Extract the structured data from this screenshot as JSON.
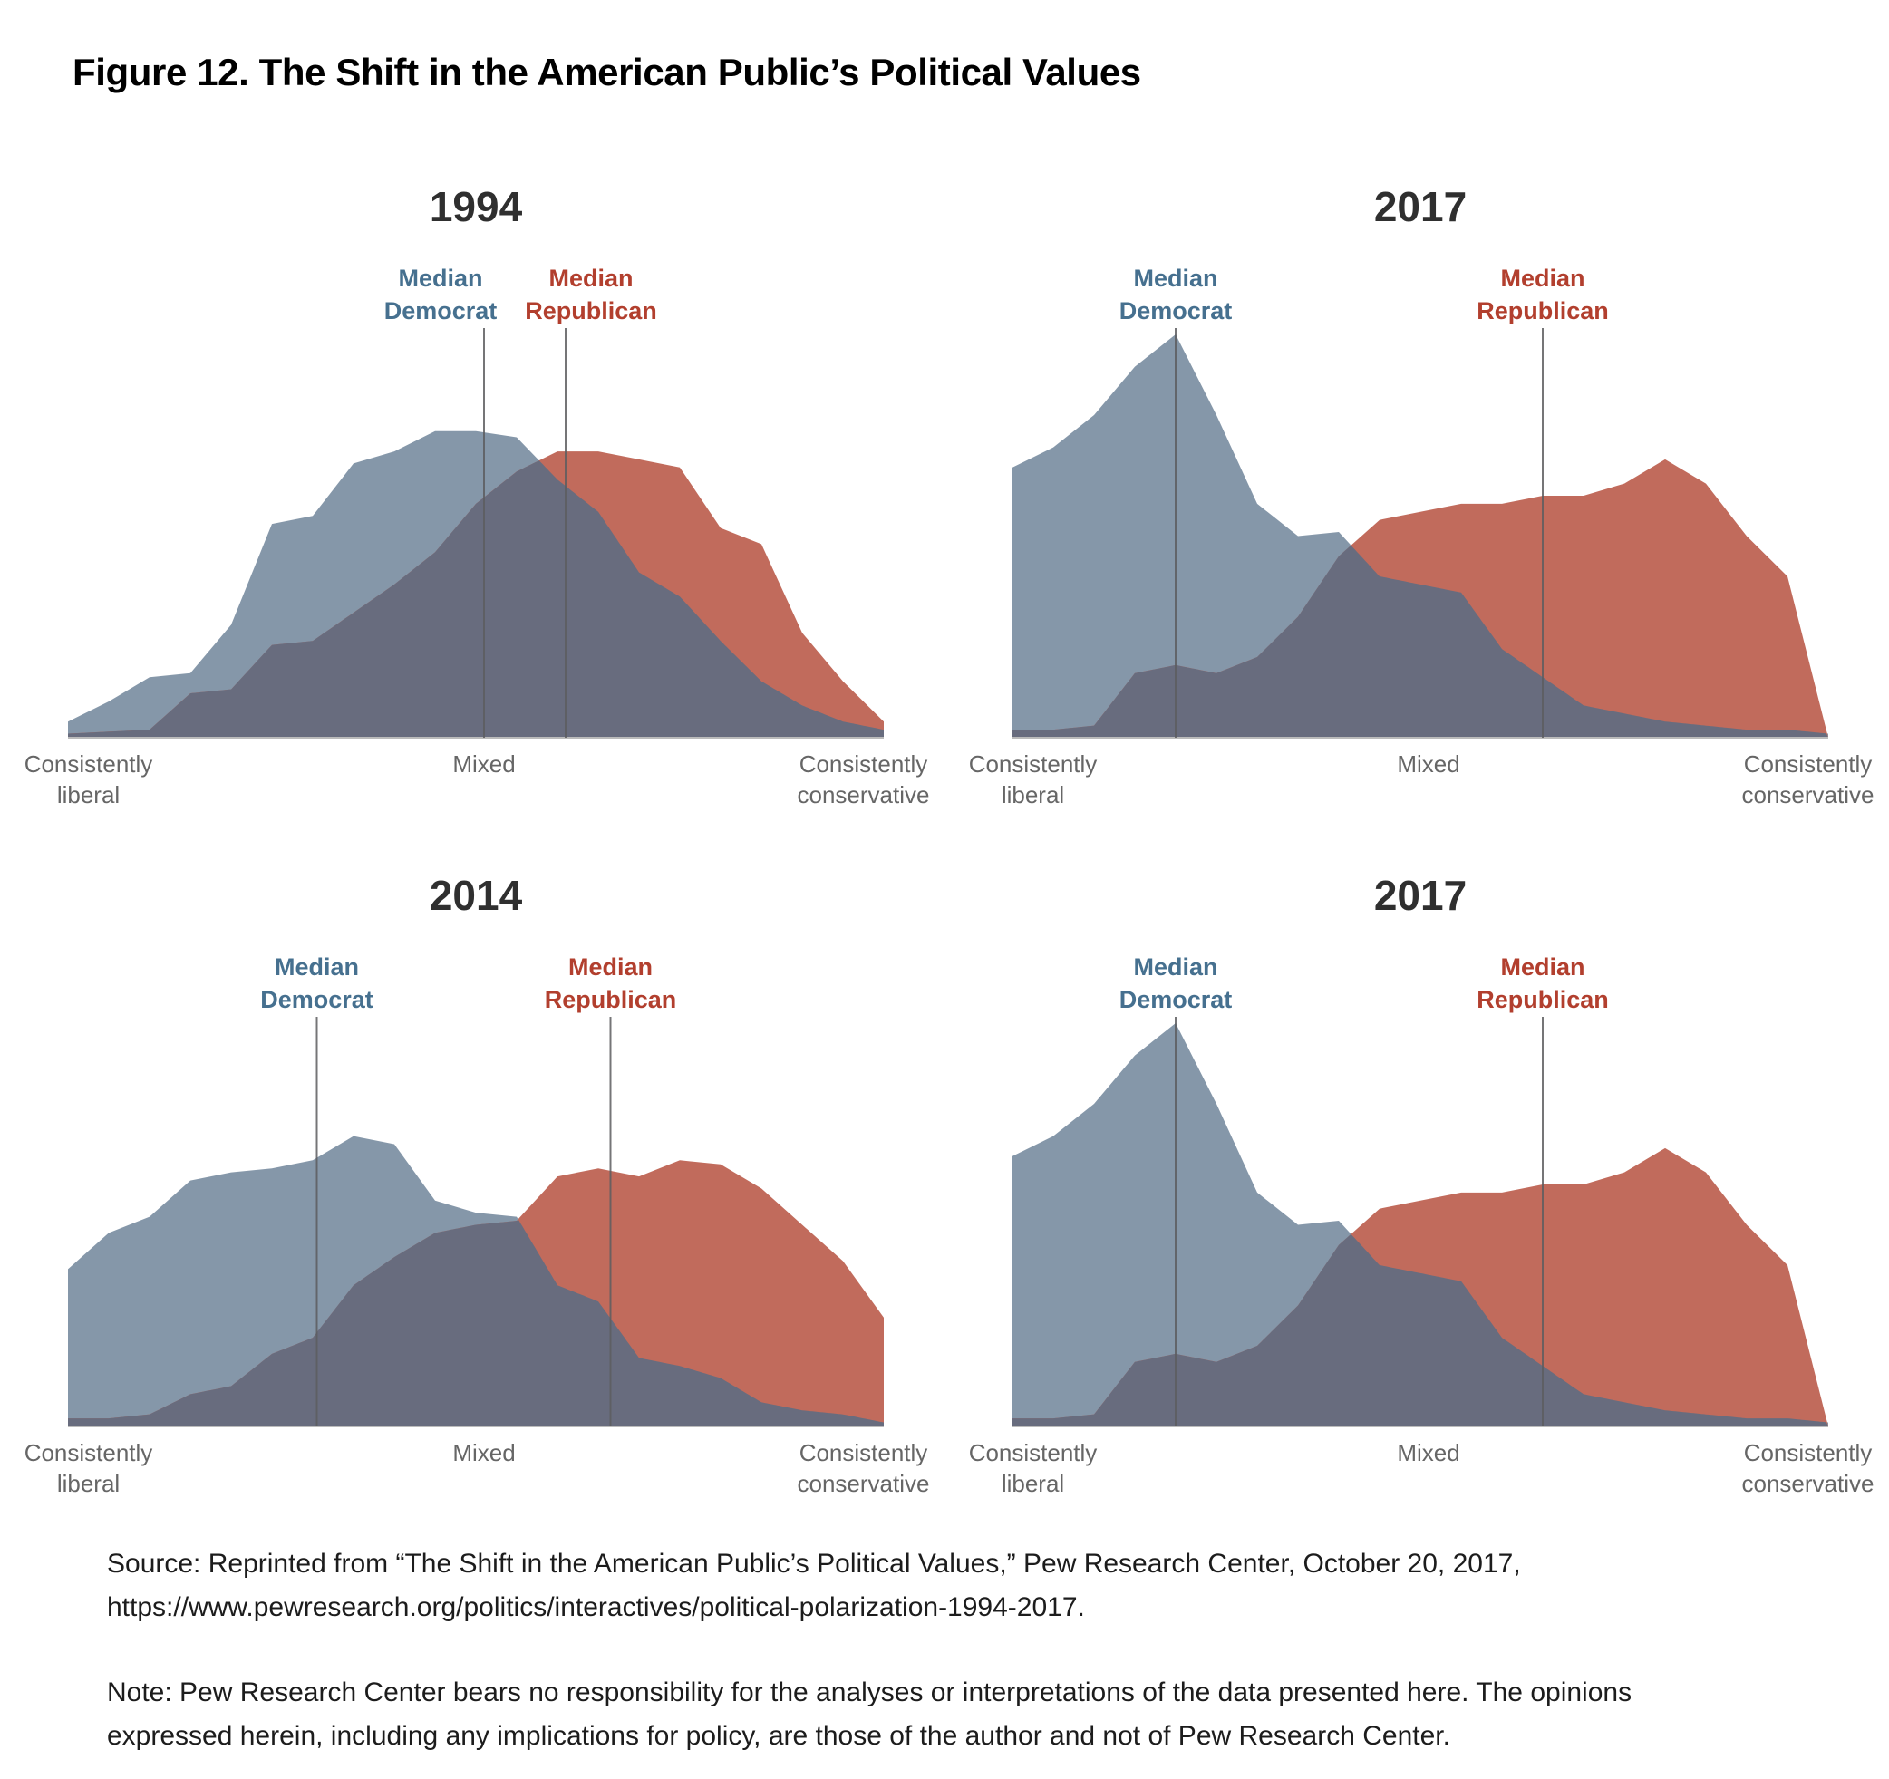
{
  "figure": {
    "title": "Figure 12. The Shift in the American Public’s Political Values",
    "source": "Source: Reprinted from “The Shift in the American Public’s Political Values,” Pew Research Center, October 20, 2017, https://www.pewresearch.org/politics/interactives/political-polarization-1994-2017.",
    "note": "Note: Pew Research Center bears no responsibility for the analyses or interpretations of the data presented here. The opinions expressed herein, including any implications for policy, are those of the author and not of Pew Research Center."
  },
  "colors": {
    "democrat_fill": "#8597A9",
    "republican_fill": "#C16B5C",
    "overlap_fill": "#686C7E",
    "democrat_label": "#46708F",
    "republican_label": "#B23F2E",
    "median_line": "#5D5D60",
    "axis_line": "#BBBBBB",
    "year_title": "#2F2F2F",
    "tick_label": "#666666"
  },
  "chart_data": [
    {
      "type": "area",
      "title": "1994",
      "x_axis": {
        "range": [
          0,
          20
        ],
        "ticks": [
          {
            "label": "Consistently liberal",
            "x": 0.5
          },
          {
            "label": "Mixed",
            "x": 10.2
          },
          {
            "label": "Consistently conservative",
            "x": 19.5
          }
        ]
      },
      "y_unit": "relative height, % of tallest peak (2017 Democrat peak = 100)",
      "series": [
        {
          "name": "Democrats",
          "values": [
            4,
            9,
            15,
            16,
            28,
            53,
            55,
            68,
            71,
            76,
            76,
            74.5,
            64,
            56,
            41,
            35,
            24,
            14,
            8,
            4,
            2
          ]
        },
        {
          "name": "Republicans",
          "values": [
            1,
            1.5,
            2,
            11,
            12,
            23,
            24,
            31,
            38,
            46,
            58,
            66,
            71,
            71,
            69,
            67,
            52,
            48,
            26,
            14,
            4
          ]
        }
      ],
      "medians": [
        {
          "label": "Median Democrat",
          "x": 10.2,
          "label_dx": -48
        },
        {
          "label": "Median Republican",
          "x": 12.2,
          "label_dx": 28
        }
      ]
    },
    {
      "type": "area",
      "title": "2017",
      "x_axis": {
        "range": [
          0,
          20
        ],
        "ticks": [
          {
            "label": "Consistently liberal",
            "x": 0.5
          },
          {
            "label": "Mixed",
            "x": 10.2
          },
          {
            "label": "Consistently conservative",
            "x": 19.5
          }
        ]
      },
      "y_unit": "relative height, % of tallest peak (2017 Democrat peak = 100)",
      "series": [
        {
          "name": "Democrats",
          "values": [
            67,
            72,
            80,
            92,
            100,
            80,
            58,
            50,
            51,
            40,
            38,
            36,
            22,
            15,
            8,
            6,
            4,
            3,
            2,
            2,
            1
          ]
        },
        {
          "name": "Republicans",
          "values": [
            2,
            2,
            3,
            16,
            18,
            16,
            20,
            30,
            45,
            54,
            56,
            58,
            58,
            60,
            60,
            63,
            69,
            63,
            50,
            40,
            0
          ]
        }
      ],
      "medians": [
        {
          "label": "Median Democrat",
          "x": 4.0,
          "label_dx": 0
        },
        {
          "label": "Median Republican",
          "x": 13.0,
          "label_dx": 0
        }
      ]
    },
    {
      "type": "area",
      "title": "2014",
      "x_axis": {
        "range": [
          0,
          20
        ],
        "ticks": [
          {
            "label": "Consistently liberal",
            "x": 0.5
          },
          {
            "label": "Mixed",
            "x": 10.2
          },
          {
            "label": "Consistently conservative",
            "x": 19.5
          }
        ]
      },
      "y_unit": "relative height, % of tallest peak (2017 Democrat peak = 100)",
      "series": [
        {
          "name": "Democrats",
          "values": [
            39,
            48,
            52,
            61,
            63,
            64,
            66,
            72,
            70,
            56,
            53,
            52,
            35,
            31,
            17,
            15,
            12,
            6,
            4,
            3,
            1
          ]
        },
        {
          "name": "Republicans",
          "values": [
            2,
            2,
            3,
            8,
            10,
            18,
            22,
            35,
            42,
            48,
            50,
            51,
            62,
            64,
            62,
            66,
            65,
            59,
            50,
            41,
            27
          ]
        }
      ],
      "medians": [
        {
          "label": "Median Democrat",
          "x": 6.1,
          "label_dx": 0
        },
        {
          "label": "Median Republican",
          "x": 13.3,
          "label_dx": 0
        }
      ]
    },
    {
      "type": "area",
      "title": "2017",
      "x_axis": {
        "range": [
          0,
          20
        ],
        "ticks": [
          {
            "label": "Consistently liberal",
            "x": 0.5
          },
          {
            "label": "Mixed",
            "x": 10.2
          },
          {
            "label": "Consistently conservative",
            "x": 19.5
          }
        ]
      },
      "y_unit": "relative height, % of tallest peak (2017 Democrat peak = 100)",
      "series": [
        {
          "name": "Democrats",
          "values": [
            67,
            72,
            80,
            92,
            100,
            80,
            58,
            50,
            51,
            40,
            38,
            36,
            22,
            15,
            8,
            6,
            4,
            3,
            2,
            2,
            1
          ]
        },
        {
          "name": "Republicans",
          "values": [
            2,
            2,
            3,
            16,
            18,
            16,
            20,
            30,
            45,
            54,
            56,
            58,
            58,
            60,
            60,
            63,
            69,
            63,
            50,
            40,
            0
          ]
        }
      ],
      "medians": [
        {
          "label": "Median Democrat",
          "x": 4.0,
          "label_dx": 0
        },
        {
          "label": "Median Republican",
          "x": 13.0,
          "label_dx": 0
        }
      ]
    }
  ]
}
